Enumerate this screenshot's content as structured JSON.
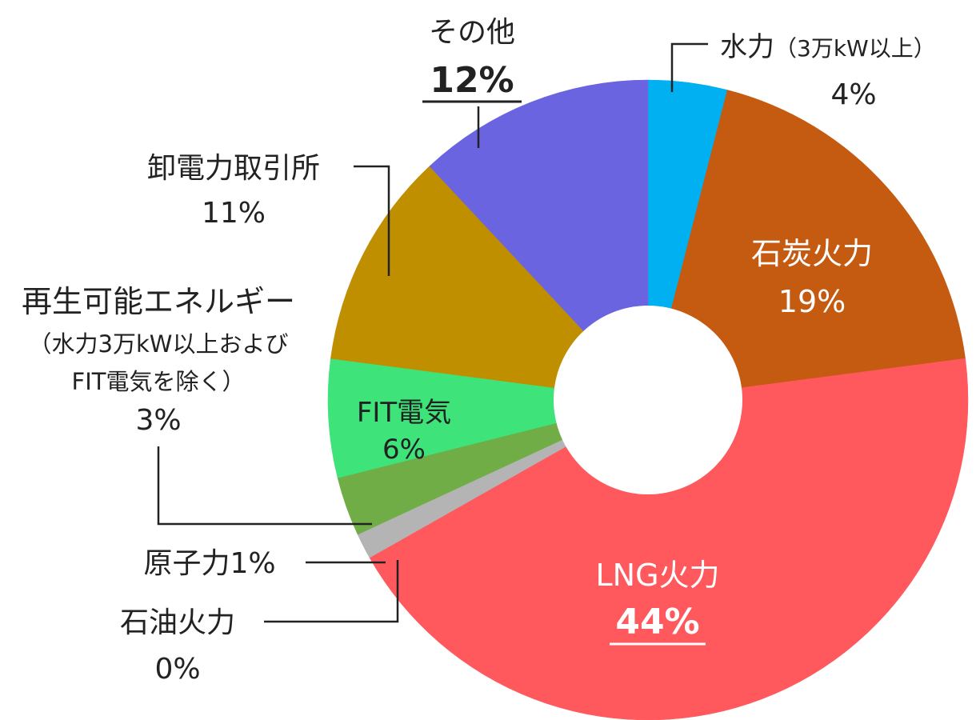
{
  "chart_data": {
    "type": "pie",
    "donut": true,
    "legend": "none",
    "slices": [
      {
        "name": "水力（3万kW以上）",
        "value": 4,
        "label": "4%",
        "color": "#00b0f0"
      },
      {
        "name": "石炭火力",
        "value": 19,
        "label": "19%",
        "color": "#c55a11"
      },
      {
        "name": "LNG火力",
        "value": 44,
        "label": "44%",
        "color": "#ff595e"
      },
      {
        "name": "石油火力",
        "value": 0.3,
        "label": "0%",
        "color": "#b4b4b4"
      },
      {
        "name": "原子力",
        "value": 1,
        "label": "1%",
        "color": "#b4b4b4"
      },
      {
        "name": "再生可能エネルギー（水力3万kW以上およびFIT電気を除く）",
        "value": 3,
        "label": "3%",
        "color": "#70ad47"
      },
      {
        "name": "FIT電気",
        "value": 6,
        "label": "6%",
        "color": "#3ee37a"
      },
      {
        "name": "卸電力取引所",
        "value": 11,
        "label": "11%",
        "color": "#bf8f00"
      },
      {
        "name": "その他",
        "value": 12,
        "label": "12%",
        "color": "#6a64e0"
      }
    ]
  },
  "labels": {
    "hydro": {
      "line1": "水力",
      "line2": "（3万kW以上）",
      "pct": "4%"
    },
    "coal": {
      "line1": "石炭火力",
      "pct": "19%"
    },
    "lng": {
      "line1": "LNG火力",
      "pct": "44%"
    },
    "oil": {
      "line1": "石油火力",
      "pct": "0%"
    },
    "nuclear": {
      "line1": "原子力1%"
    },
    "renewable": {
      "line1": "再生可能エネルギー",
      "line2": "（水力3万kW以上および",
      "line3": "FIT電気を除く）",
      "pct": "3%"
    },
    "fit": {
      "line1": "FIT電気",
      "pct": "6%"
    },
    "jepx": {
      "line1": "卸電力取引所",
      "pct": "11%"
    },
    "other": {
      "line1": "その他",
      "pct": "12%"
    }
  }
}
